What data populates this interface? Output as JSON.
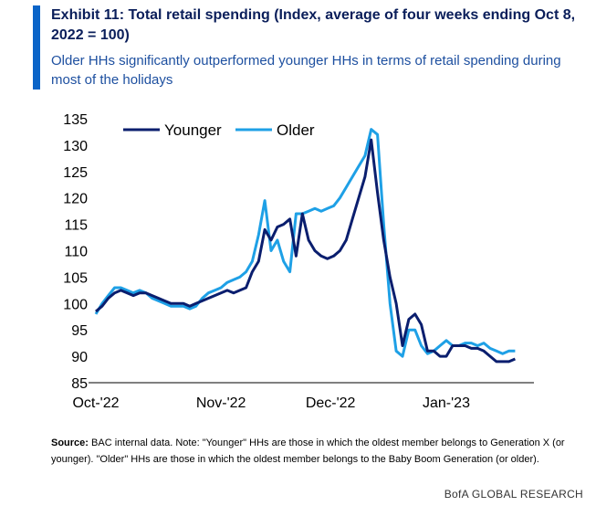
{
  "header": {
    "title": "Exhibit 11: Total retail spending (Index, average of four weeks ending Oct 8, 2022 = 100)",
    "subtitle": "Older HHs significantly outperformed younger HHs in terms of retail spending during most of the holidays"
  },
  "footer": {
    "source_label": "Source:",
    "source_text": " BAC internal data. Note: \"Younger\" HHs are those in which the oldest member belongs to Generation X (or younger). \"Older\" HHs are those in which the oldest member belongs to the Baby Boom Generation (or older).",
    "brand": "BofA GLOBAL RESEARCH"
  },
  "colors": {
    "accent": "#0a64c8",
    "younger": "#0a1e6e",
    "older": "#1ea0e6"
  },
  "chart_data": {
    "type": "line",
    "title": "",
    "xlabel": "",
    "ylabel": "",
    "ylim": [
      85,
      135
    ],
    "xlim": [
      0,
      70
    ],
    "x_ticks": [
      {
        "label": "Oct-'22",
        "x": 0
      },
      {
        "label": "Nov-'22",
        "x": 20
      },
      {
        "label": "Dec-'22",
        "x": 37.5
      },
      {
        "label": "Jan-'23",
        "x": 56
      }
    ],
    "y_ticks": [
      85,
      90,
      95,
      100,
      105,
      110,
      115,
      120,
      125,
      130,
      135
    ],
    "legend": "top-left",
    "grid": false,
    "series": [
      {
        "name": "Younger",
        "color": "#0a1e6e",
        "points": [
          [
            0,
            98.5
          ],
          [
            1,
            99.5
          ],
          [
            2,
            101
          ],
          [
            3,
            102
          ],
          [
            4,
            102.5
          ],
          [
            5,
            102
          ],
          [
            6,
            101.5
          ],
          [
            7,
            102
          ],
          [
            8,
            102
          ],
          [
            9,
            101.5
          ],
          [
            10,
            101
          ],
          [
            11,
            100.5
          ],
          [
            12,
            100
          ],
          [
            13,
            100
          ],
          [
            14,
            100
          ],
          [
            15,
            99.5
          ],
          [
            16,
            100
          ],
          [
            17,
            100.5
          ],
          [
            18,
            101
          ],
          [
            19,
            101.5
          ],
          [
            20,
            102
          ],
          [
            21,
            102.5
          ],
          [
            22,
            102
          ],
          [
            23,
            102.5
          ],
          [
            24,
            103
          ],
          [
            25,
            106
          ],
          [
            26,
            108
          ],
          [
            27,
            114
          ],
          [
            28,
            112
          ],
          [
            29,
            114.5
          ],
          [
            30,
            115
          ],
          [
            31,
            116
          ],
          [
            32,
            109
          ],
          [
            33,
            117
          ],
          [
            34,
            112
          ],
          [
            35,
            110
          ],
          [
            36,
            109
          ],
          [
            37,
            108.5
          ],
          [
            38,
            109
          ],
          [
            39,
            110
          ],
          [
            40,
            112
          ],
          [
            41,
            116
          ],
          [
            42,
            120
          ],
          [
            43,
            124
          ],
          [
            44,
            131
          ],
          [
            45,
            121
          ],
          [
            46,
            112
          ],
          [
            47,
            105
          ],
          [
            48,
            100
          ],
          [
            49,
            92
          ],
          [
            50,
            97
          ],
          [
            51,
            98
          ],
          [
            52,
            96
          ],
          [
            53,
            91
          ],
          [
            54,
            91
          ],
          [
            55,
            90
          ],
          [
            56,
            90
          ],
          [
            57,
            92
          ],
          [
            58,
            92
          ],
          [
            59,
            92
          ],
          [
            60,
            91.5
          ],
          [
            61,
            91.5
          ],
          [
            62,
            91
          ],
          [
            63,
            90
          ],
          [
            64,
            89
          ],
          [
            65,
            89
          ],
          [
            66,
            89
          ],
          [
            67,
            89.5
          ]
        ]
      },
      {
        "name": "Older",
        "color": "#1ea0e6",
        "points": [
          [
            0,
            98
          ],
          [
            1,
            100
          ],
          [
            2,
            101.5
          ],
          [
            3,
            103
          ],
          [
            4,
            103
          ],
          [
            5,
            102.5
          ],
          [
            6,
            102
          ],
          [
            7,
            102.5
          ],
          [
            8,
            102
          ],
          [
            9,
            101
          ],
          [
            10,
            100.5
          ],
          [
            11,
            100
          ],
          [
            12,
            99.5
          ],
          [
            13,
            99.5
          ],
          [
            14,
            99.5
          ],
          [
            15,
            99
          ],
          [
            16,
            99.5
          ],
          [
            17,
            101
          ],
          [
            18,
            102
          ],
          [
            19,
            102.5
          ],
          [
            20,
            103
          ],
          [
            21,
            104
          ],
          [
            22,
            104.5
          ],
          [
            23,
            105
          ],
          [
            24,
            106
          ],
          [
            25,
            108
          ],
          [
            26,
            113
          ],
          [
            27,
            119.5
          ],
          [
            28,
            110
          ],
          [
            29,
            112
          ],
          [
            30,
            108
          ],
          [
            31,
            106
          ],
          [
            32,
            117
          ],
          [
            33,
            117
          ],
          [
            34,
            117.5
          ],
          [
            35,
            118
          ],
          [
            36,
            117.5
          ],
          [
            37,
            118
          ],
          [
            38,
            118.5
          ],
          [
            39,
            120
          ],
          [
            40,
            122
          ],
          [
            41,
            124
          ],
          [
            42,
            126
          ],
          [
            43,
            128
          ],
          [
            44,
            133
          ],
          [
            45,
            132
          ],
          [
            46,
            115
          ],
          [
            47,
            100
          ],
          [
            48,
            91
          ],
          [
            49,
            90
          ],
          [
            50,
            95
          ],
          [
            51,
            95
          ],
          [
            52,
            92
          ],
          [
            53,
            90.5
          ],
          [
            54,
            91
          ],
          [
            55,
            92
          ],
          [
            56,
            93
          ],
          [
            57,
            92
          ],
          [
            58,
            92
          ],
          [
            59,
            92.5
          ],
          [
            60,
            92.5
          ],
          [
            61,
            92
          ],
          [
            62,
            92.5
          ],
          [
            63,
            91.5
          ],
          [
            64,
            91
          ],
          [
            65,
            90.5
          ],
          [
            66,
            91
          ],
          [
            67,
            91
          ]
        ]
      }
    ]
  }
}
